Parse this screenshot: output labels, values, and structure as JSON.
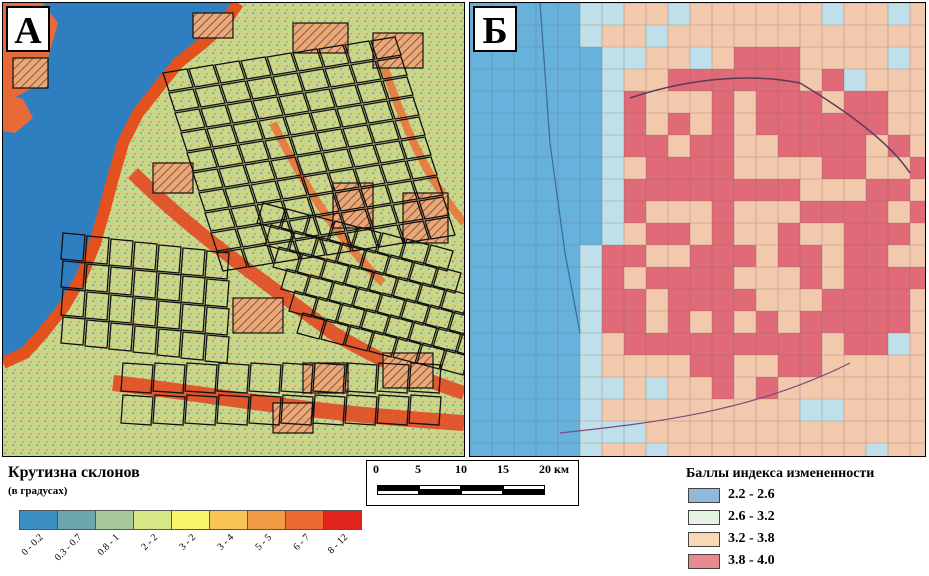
{
  "panels": {
    "a": {
      "label": "А"
    },
    "b": {
      "label": "Б"
    }
  },
  "slope_legend": {
    "title": "Крутизна склонов",
    "subtitle": "(в градусах)",
    "classes": [
      {
        "label": "0 - 0.2",
        "color": "#3b8fc4"
      },
      {
        "label": "0.3 - 0.7",
        "color": "#6ea6ae"
      },
      {
        "label": "0.8 - 1",
        "color": "#a6c89a"
      },
      {
        "label": "2 - 2",
        "color": "#d6e886"
      },
      {
        "label": "3 - 2",
        "color": "#f7f56a"
      },
      {
        "label": "3 - 4",
        "color": "#f8c455"
      },
      {
        "label": "5 - 5",
        "color": "#f39a45"
      },
      {
        "label": "6 - 7",
        "color": "#ec6a32"
      },
      {
        "label": "8 - 12",
        "color": "#e3231d"
      }
    ]
  },
  "scale_bar": {
    "labels": [
      "0",
      "5",
      "10",
      "15",
      "20 км"
    ]
  },
  "index_legend": {
    "title": "Баллы индекса измененности",
    "classes": [
      {
        "label": "2.2 - 2.6",
        "color": "#8fb8dc"
      },
      {
        "label": "2.6 - 3.2",
        "color": "#e6f2e4"
      },
      {
        "label": "3.2 - 3.8",
        "color": "#f7d9b8"
      },
      {
        "label": "3.8 - 4.0",
        "color": "#e88a8e"
      }
    ]
  },
  "map_colors": {
    "water": "#2f7fc0",
    "grid_blue": "#66b2dd",
    "grid_pale": "#bfe0ea",
    "grid_beige": "#f3c9ae",
    "grid_red": "#e06a78"
  }
}
